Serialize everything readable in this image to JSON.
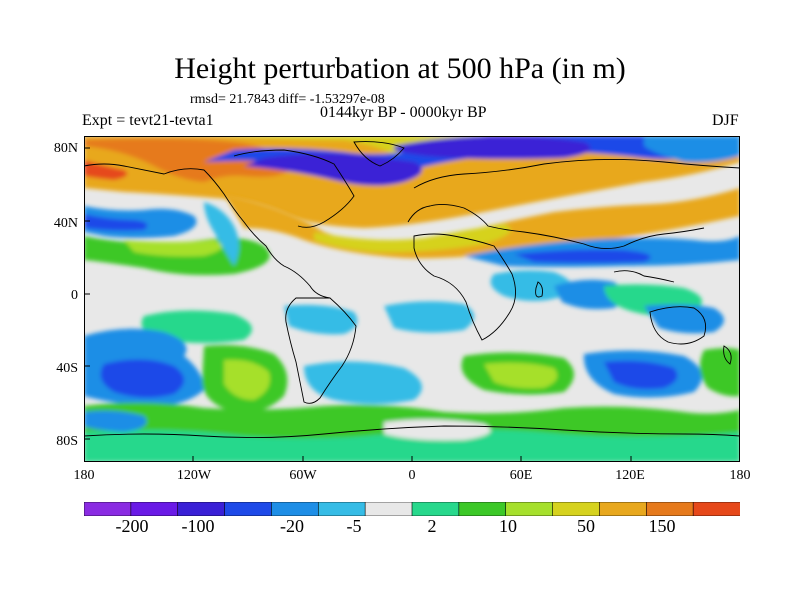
{
  "title": "Height perturbation at 500 hPa (in m)",
  "stats": "rmsd= 21.7843 diff= -1.53297e-08",
  "period": "0144kyr BP - 0000kyr BP",
  "experiment": "Expt = tevt21-tevta1",
  "season": "DJF",
  "latitude_labels": [
    "80N",
    "40N",
    "0",
    "40S",
    "80S"
  ],
  "longitude_labels": [
    "180",
    "120W",
    "60W",
    "0",
    "60E",
    "120E",
    "180"
  ],
  "colorbar": {
    "labels": [
      "-200",
      "-100",
      "-20",
      "-5",
      "2",
      "10",
      "50",
      "150"
    ],
    "colors": [
      "#8a2be2",
      "#6a1ae6",
      "#3a20d6",
      "#1e4ae8",
      "#1e8ee6",
      "#36bce6",
      "#e8e8e8",
      "#28d88c",
      "#3cc828",
      "#a6e02c",
      "#d6d21e",
      "#e8a81e",
      "#e67a1c",
      "#e6481a"
    ]
  },
  "map_colors": {
    "ocean_neutral": "#e8e8e8",
    "deep_blue": "#3a20d6",
    "blue": "#1e4ae8",
    "mid_blue": "#1e8ee6",
    "light_blue": "#36bce6",
    "teal": "#28d88c",
    "green": "#3cc828",
    "lime": "#a6e02c",
    "yellow": "#d6d21e",
    "orange": "#e8a81e",
    "dark_orange": "#e67a1c"
  }
}
